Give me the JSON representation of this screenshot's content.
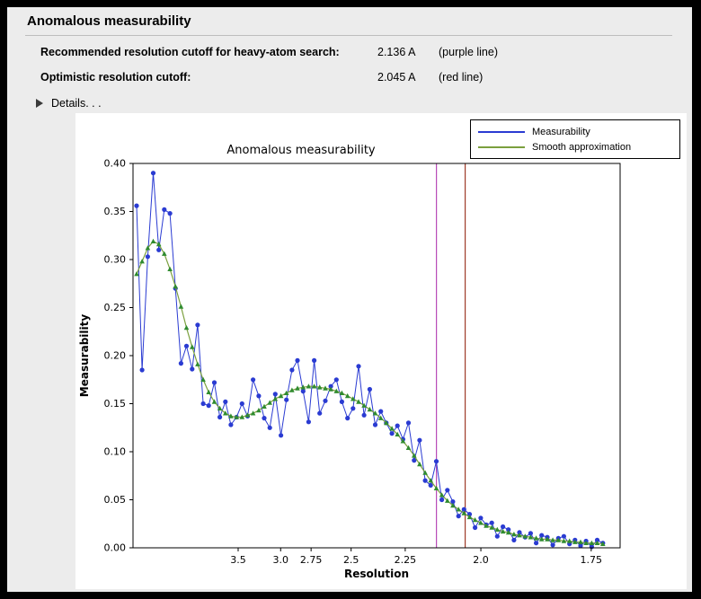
{
  "panel": {
    "title": "Anomalous measurability"
  },
  "summary": {
    "rows": [
      {
        "label": "Recommended resolution cutoff for heavy-atom search:",
        "value": "2.136 A",
        "note": "(purple line)"
      },
      {
        "label": "Optimistic resolution cutoff:",
        "value": "2.045 A",
        "note": "(red line)"
      }
    ],
    "details_label": "Details. . ."
  },
  "icons": {
    "details_disclosure": "triangle-right"
  },
  "chart_data": {
    "type": "line",
    "title": "Anomalous measurability",
    "xlabel": "Resolution",
    "ylabel": "Measurability",
    "grid": false,
    "legend_position": "upper right",
    "ylim": [
      0.0,
      0.4
    ],
    "y_ticks": [
      0.0,
      0.05,
      0.1,
      0.15,
      0.2,
      0.25,
      0.3,
      0.35,
      0.4
    ],
    "x_axis": {
      "unit": "Angstrom",
      "scale": "1/d^2 (reversed resolution axis)",
      "tick_labels": [
        "3.5",
        "3.0",
        "2.75",
        "2.5",
        "2.25",
        "2.0",
        "1.75"
      ],
      "xlim_inv_d2": [
        0.0087,
        0.3466
      ]
    },
    "x_inv_d2": [
      0.0112,
      0.015,
      0.0189,
      0.0227,
      0.0266,
      0.0304,
      0.0343,
      0.0381,
      0.042,
      0.0458,
      0.0497,
      0.0535,
      0.0574,
      0.0612,
      0.0651,
      0.0689,
      0.0728,
      0.0766,
      0.0805,
      0.0843,
      0.0882,
      0.092,
      0.0959,
      0.0997,
      0.1036,
      0.1074,
      0.1113,
      0.1151,
      0.119,
      0.1228,
      0.1267,
      0.1305,
      0.1344,
      0.1382,
      0.1421,
      0.1459,
      0.1498,
      0.1536,
      0.1575,
      0.1613,
      0.1652,
      0.169,
      0.1729,
      0.1767,
      0.1806,
      0.1844,
      0.1883,
      0.1921,
      0.196,
      0.1998,
      0.2037,
      0.2075,
      0.2114,
      0.2152,
      0.2191,
      0.2229,
      0.2268,
      0.2306,
      0.2345,
      0.2383,
      0.2422,
      0.246,
      0.2499,
      0.2537,
      0.2576,
      0.2614,
      0.2653,
      0.2691,
      0.273,
      0.2768,
      0.2807,
      0.2845,
      0.2884,
      0.2922,
      0.2961,
      0.2999,
      0.3038,
      0.3076,
      0.3115,
      0.3153,
      0.3192,
      0.323,
      0.3269,
      0.3307,
      0.3346
    ],
    "series": [
      {
        "name": "Measurability",
        "color": "#2a3bd2",
        "marker": "circle",
        "marker_color": "#2a3bd2",
        "values": [
          0.356,
          0.185,
          0.303,
          0.39,
          0.31,
          0.352,
          0.348,
          0.27,
          0.192,
          0.21,
          0.186,
          0.232,
          0.15,
          0.148,
          0.172,
          0.136,
          0.152,
          0.128,
          0.136,
          0.15,
          0.137,
          0.175,
          0.158,
          0.135,
          0.125,
          0.16,
          0.117,
          0.154,
          0.185,
          0.195,
          0.163,
          0.131,
          0.195,
          0.14,
          0.153,
          0.168,
          0.175,
          0.152,
          0.135,
          0.145,
          0.189,
          0.138,
          0.165,
          0.128,
          0.142,
          0.13,
          0.119,
          0.127,
          0.113,
          0.13,
          0.091,
          0.112,
          0.07,
          0.065,
          0.09,
          0.05,
          0.06,
          0.048,
          0.033,
          0.04,
          0.035,
          0.021,
          0.031,
          0.024,
          0.026,
          0.012,
          0.022,
          0.019,
          0.008,
          0.016,
          0.011,
          0.015,
          0.005,
          0.013,
          0.011,
          0.003,
          0.01,
          0.012,
          0.004,
          0.008,
          0.002,
          0.007,
          0.001,
          0.008,
          0.005
        ]
      },
      {
        "name": "Smooth approximation",
        "color": "#7ba03e",
        "marker": "triangle",
        "marker_color": "#2f8b2f",
        "values": [
          0.285,
          0.298,
          0.312,
          0.319,
          0.316,
          0.306,
          0.29,
          0.272,
          0.251,
          0.229,
          0.209,
          0.191,
          0.175,
          0.162,
          0.152,
          0.145,
          0.14,
          0.137,
          0.136,
          0.136,
          0.138,
          0.14,
          0.143,
          0.147,
          0.151,
          0.155,
          0.158,
          0.161,
          0.164,
          0.166,
          0.167,
          0.168,
          0.168,
          0.167,
          0.166,
          0.165,
          0.163,
          0.161,
          0.158,
          0.155,
          0.152,
          0.148,
          0.144,
          0.14,
          0.135,
          0.13,
          0.124,
          0.118,
          0.111,
          0.104,
          0.096,
          0.087,
          0.078,
          0.07,
          0.062,
          0.055,
          0.049,
          0.044,
          0.04,
          0.036,
          0.032,
          0.029,
          0.026,
          0.023,
          0.021,
          0.019,
          0.017,
          0.016,
          0.014,
          0.013,
          0.012,
          0.011,
          0.01,
          0.009,
          0.009,
          0.008,
          0.008,
          0.007,
          0.007,
          0.006,
          0.006,
          0.005,
          0.005,
          0.005,
          0.004
        ]
      }
    ],
    "vlines": [
      {
        "resolution": 2.136,
        "color": "#b84ab8",
        "label": "purple line"
      },
      {
        "resolution": 2.045,
        "color": "#9e3a28",
        "label": "red line"
      }
    ]
  }
}
